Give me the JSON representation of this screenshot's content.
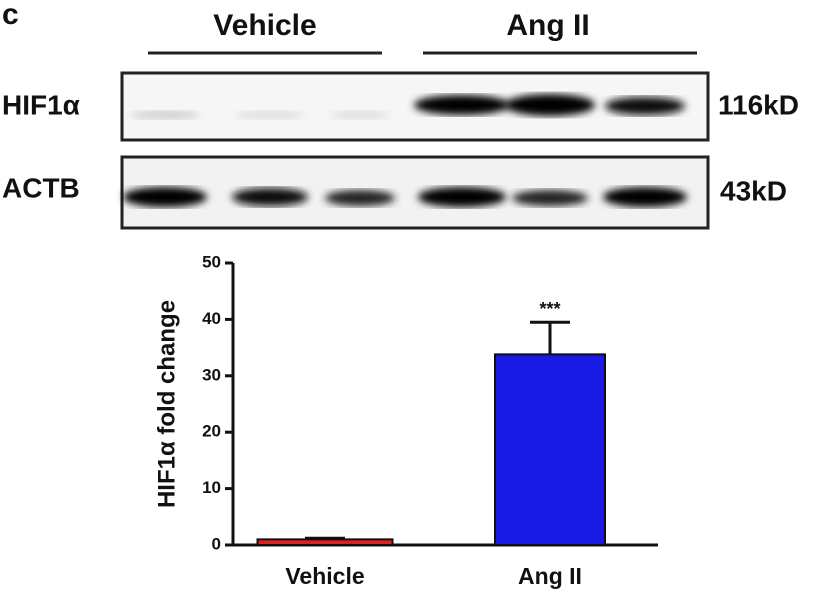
{
  "blot": {
    "panel_label": "c",
    "groups": [
      "Vehicle",
      "Ang II"
    ],
    "rows": [
      {
        "label": "HIF1α",
        "size": "116kD"
      },
      {
        "label": "ACTB",
        "size": "43kD"
      }
    ]
  },
  "chart_data": {
    "type": "bar",
    "y_label": "HIF1α fold change",
    "categories": [
      "Vehicle",
      "Ang II"
    ],
    "values": [
      1,
      33.8
    ],
    "errors": [
      0.2,
      5.7
    ],
    "colors": [
      "#e02020",
      "#1a1ae6"
    ],
    "annotations": [
      null,
      "***"
    ],
    "ylim": [
      0,
      50
    ],
    "yticks": [
      0,
      10,
      20,
      30,
      40,
      50
    ]
  }
}
